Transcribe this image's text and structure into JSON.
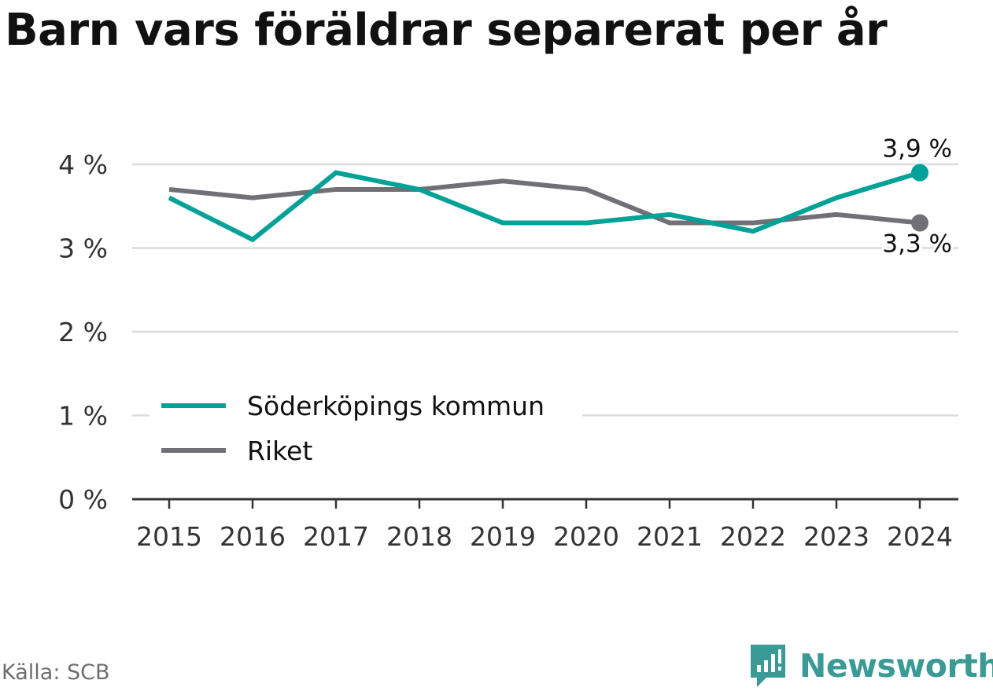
{
  "title": "Barn vars föräldrar separerat per år",
  "source": "Källa: SCB",
  "brand": {
    "name": "Newsworthy",
    "icon": "newsworthy-logo-icon",
    "color": "#3a9a95"
  },
  "chart_data": {
    "type": "line",
    "title": "Barn vars föräldrar separerat per år",
    "x": [
      "2015",
      "2016",
      "2017",
      "2018",
      "2019",
      "2020",
      "2021",
      "2022",
      "2023",
      "2024"
    ],
    "y_ticks": [
      0,
      1,
      2,
      3,
      4
    ],
    "y_tick_labels": [
      "0 %",
      "1 %",
      "2 %",
      "3 %",
      "4 %"
    ],
    "ylim": [
      0,
      4.2
    ],
    "grid": true,
    "legend_position": "lower-left",
    "series": [
      {
        "name": "Söderköpings kommun",
        "color": "#00a196",
        "values": [
          3.6,
          3.1,
          3.9,
          3.7,
          3.3,
          3.3,
          3.4,
          3.2,
          3.6,
          3.9
        ],
        "end_label": "3,9 %"
      },
      {
        "name": "Riket",
        "color": "#717076",
        "values": [
          3.7,
          3.6,
          3.7,
          3.7,
          3.8,
          3.7,
          3.3,
          3.3,
          3.4,
          3.3
        ],
        "end_label": "3,3 %"
      }
    ]
  }
}
